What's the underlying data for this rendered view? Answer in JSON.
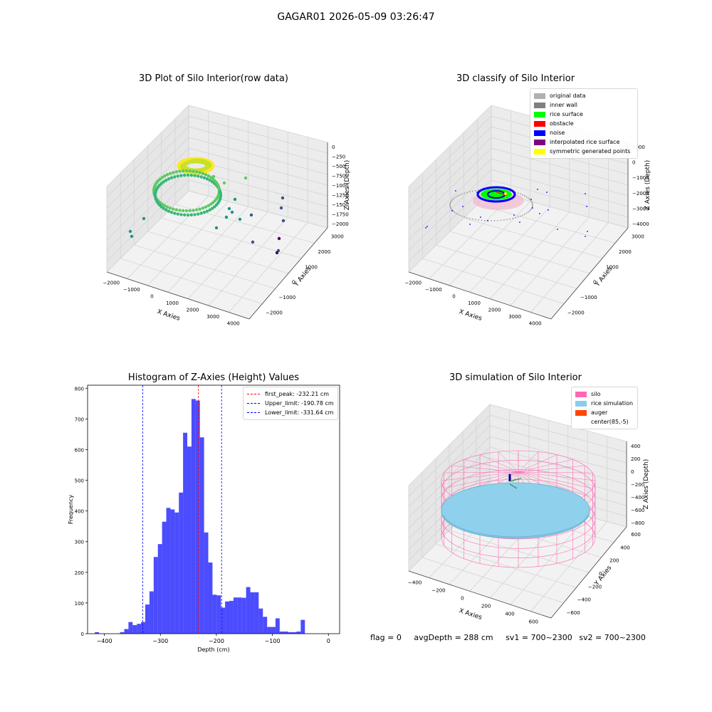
{
  "suptitle": "GAGAR01 2026-05-09 03:26:47",
  "panel1": {
    "title": "3D Plot of Silo Interior(row data)",
    "xlabel": "X Axies",
    "ylabel": "Y Axies",
    "zlabel": "Z Axies (Depth)",
    "xticks": [
      "−2000",
      "−1000",
      "0",
      "1000",
      "2000",
      "3000",
      "4000"
    ],
    "yticks": [
      "−2000",
      "−1000",
      "0",
      "1000",
      "2000",
      "3000"
    ],
    "zticks": [
      "0",
      "−250",
      "−500",
      "−750",
      "−1000",
      "−1250",
      "−1500",
      "−1750",
      "−2000"
    ],
    "colormap": [
      "#fde725",
      "#5ec962",
      "#21918c",
      "#3b528b",
      "#440154"
    ]
  },
  "panel2": {
    "title": "3D classify of Silo Interior",
    "xlabel": "X Axies",
    "ylabel": "Y Axies",
    "zlabel": "Z Axies (Depth)",
    "xticks": [
      "−2000",
      "−1000",
      "0",
      "1000",
      "2000",
      "3000",
      "4000"
    ],
    "yticks": [
      "−2000",
      "−1000",
      "0",
      "1000",
      "2000",
      "3000"
    ],
    "zticks": [
      "1000",
      "0",
      "−1000",
      "−2000",
      "−3000",
      "−4000"
    ],
    "legend": [
      {
        "label": "original data",
        "color": "#b0b0b0"
      },
      {
        "label": "inner wall",
        "color": "#808080"
      },
      {
        "label": "rice surface",
        "color": "#00ff00"
      },
      {
        "label": "obstacle",
        "color": "#ff0000"
      },
      {
        "label": "noise",
        "color": "#0000ff"
      },
      {
        "label": "interpolated rice surface",
        "color": "#800080"
      },
      {
        "label": "symmetric generated points",
        "color": "#ffff00"
      }
    ]
  },
  "panel4": {
    "title": "3D simulation of Silo Interior",
    "xlabel": "X Axies",
    "ylabel": "Y Axies",
    "zlabel": "Z Axies (Depth)",
    "xticks": [
      "−400",
      "−200",
      "0",
      "200",
      "400",
      "600"
    ],
    "yticks": [
      "−600",
      "−400",
      "−200",
      "0",
      "200",
      "400",
      "600"
    ],
    "zticks": [
      "400",
      "200",
      "0",
      "−200",
      "−400",
      "−600",
      "−800"
    ],
    "legend": [
      {
        "label": "silo",
        "color": "#ff69b4"
      },
      {
        "label": "rice simulation",
        "color": "#87ceeb"
      },
      {
        "label": "auger",
        "color": "#ff4500"
      },
      {
        "label": "center(85,-5)",
        "color": "#ffffff"
      }
    ]
  },
  "chart_data": [
    {
      "type": "bar",
      "title": "Histogram of Z-Axies (Height) Values",
      "xlabel": "Depth (cm)",
      "ylabel": "Frequency",
      "xlim": [
        -430,
        20
      ],
      "ylim": [
        0,
        810
      ],
      "xticks": [
        -400,
        -300,
        -200,
        -100,
        0
      ],
      "yticks": [
        0,
        100,
        200,
        300,
        400,
        500,
        600,
        700,
        800
      ],
      "bin_width": 7.5,
      "bin_start": -417,
      "values": [
        5,
        0,
        0,
        0,
        0,
        0,
        5,
        15,
        38,
        28,
        32,
        38,
        95,
        138,
        250,
        292,
        365,
        410,
        405,
        395,
        460,
        655,
        610,
        765,
        760,
        640,
        330,
        232,
        127,
        125,
        85,
        105,
        107,
        118,
        118,
        117,
        152,
        135,
        135,
        82,
        55,
        22,
        22,
        50,
        7,
        7,
        5,
        5,
        7,
        45
      ],
      "color": "#0000ff",
      "lines": [
        {
          "label": "first_peak: -232.21 cm",
          "x": -232.21,
          "color": "#ff0000"
        },
        {
          "label": "Upper_limit: -190.78 cm",
          "x": -190.78,
          "color": "#0000ff"
        },
        {
          "label": "Lower_limit: -331.64 cm",
          "x": -331.64,
          "color": "#0000ff"
        }
      ],
      "legend_position": "upper right"
    }
  ],
  "footer": {
    "flag": "flag = 0",
    "avg": "avgDepth = 288 cm",
    "sv1": "sv1 = 700~2300",
    "sv2": "sv2 = 700~2300"
  }
}
